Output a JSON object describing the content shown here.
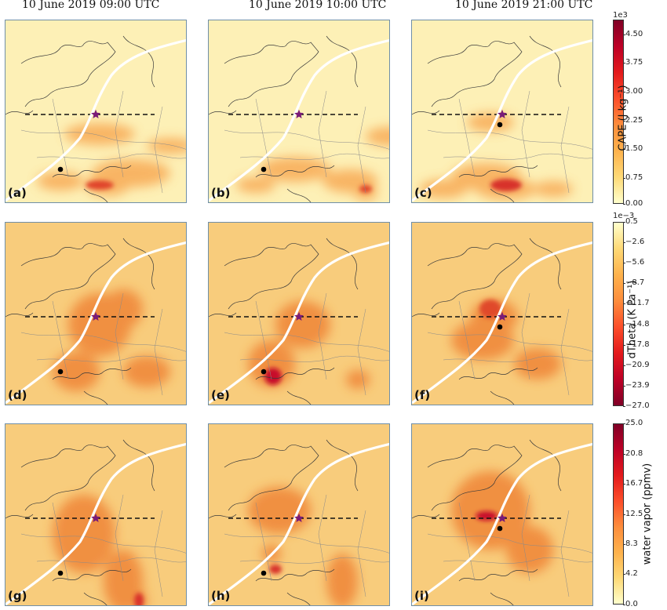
{
  "titles": [
    "10 June 2019 09:00 UTC",
    "10 June 2019 10:00 UTC",
    "10 June 2019 21:00 UTC"
  ],
  "panel_labels": [
    "(a)",
    "(b)",
    "(c)",
    "(d)",
    "(e)",
    "(f)",
    "(g)",
    "(h)",
    "(i)"
  ],
  "colorbars": [
    {
      "label": "CAPE (J kg⁻¹)",
      "exponent": "1e3",
      "ticks": [
        "4.50",
        "3.75",
        "3.00",
        "2.25",
        "1.50",
        "0.75",
        "0.00"
      ],
      "colors": [
        "#ffffcc",
        "#800026"
      ]
    },
    {
      "label": "dTheta (K Pa⁻¹)",
      "exponent": "1e−3",
      "ticks": [
        "0.5",
        "−2.6",
        "−5.6",
        "−8.7",
        "−11.7",
        "−14.8",
        "−17.8",
        "−20.9",
        "−23.9",
        "−27.0"
      ],
      "colors": [
        "#ffffcc",
        "#800026"
      ]
    },
    {
      "label": "water vapor (ppmv)",
      "exponent": "",
      "ticks": [
        "25.0",
        "20.8",
        "16.7",
        "12.5",
        "8.3",
        "4.2",
        "0.0"
      ],
      "colors": [
        "#ffffcc",
        "#800026"
      ]
    }
  ]
}
